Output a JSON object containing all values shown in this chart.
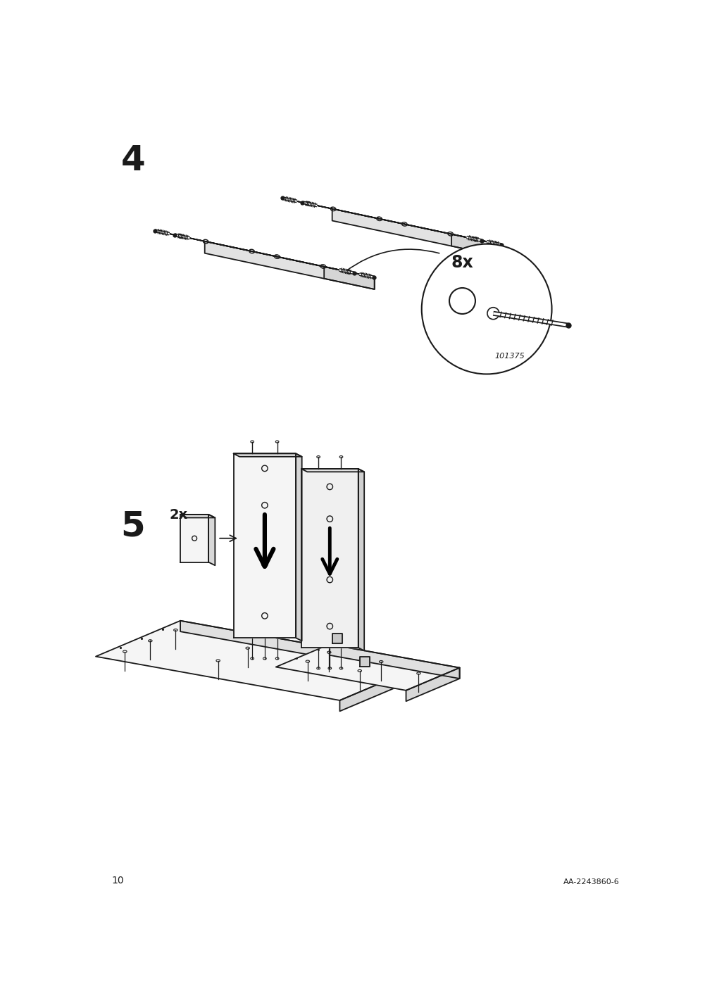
{
  "bg_color": "#ffffff",
  "line_color": "#1a1a1a",
  "step4_label": "4",
  "step5_label": "5",
  "quantity_label_4": "8x",
  "part_code": "101375",
  "quantity_label_5": "2x",
  "page_number": "10",
  "doc_code": "AA-2243860-6",
  "label_fontsize": 36,
  "small_fontsize": 10
}
